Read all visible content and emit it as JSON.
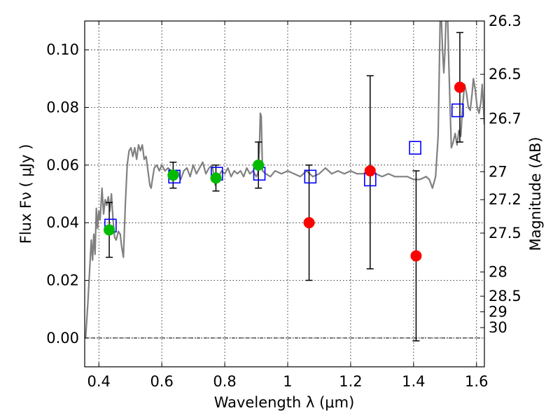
{
  "chart_data": {
    "type": "scatter",
    "xlabel": "Wavelength  λ (μm)",
    "ylabel": "Flux  Fν  ( μJy )",
    "y2label": "Magnitude (AB)",
    "xlim": [
      0.355,
      1.625
    ],
    "ylim": [
      -0.01,
      0.11
    ],
    "grid": true,
    "x_ticks": [
      0.4,
      0.6,
      0.8,
      1.0,
      1.2,
      1.4,
      1.6
    ],
    "x_tick_labels": [
      "0.4",
      "0.6",
      "0.8",
      "1",
      "1.2",
      "1.4",
      "1.6"
    ],
    "y_ticks": [
      0.0,
      0.02,
      0.04,
      0.06,
      0.08,
      0.1
    ],
    "y_tick_labels": [
      "0.00",
      "0.02",
      "0.04",
      "0.06",
      "0.08",
      "0.10"
    ],
    "y2_ticks": [
      {
        "label": "26.3",
        "flux": 0.11
      },
      {
        "label": "26.5",
        "flux": 0.0915
      },
      {
        "label": "26.7",
        "flux": 0.0761
      },
      {
        "label": "27",
        "flux": 0.0577
      },
      {
        "label": "27.2",
        "flux": 0.048
      },
      {
        "label": "27.5",
        "flux": 0.0364
      },
      {
        "label": "28",
        "flux": 0.0229
      },
      {
        "label": "28.5",
        "flux": 0.0145
      },
      {
        "label": "29",
        "flux": 0.0091
      },
      {
        "label": "30",
        "flux": 0.0036
      }
    ],
    "zero_line": 0.0,
    "model_spectrum": {
      "color": "#808080",
      "points": [
        [
          0.358,
          0.0
        ],
        [
          0.365,
          0.012
        ],
        [
          0.372,
          0.026
        ],
        [
          0.376,
          0.034
        ],
        [
          0.38,
          0.027
        ],
        [
          0.384,
          0.036
        ],
        [
          0.388,
          0.029
        ],
        [
          0.392,
          0.045
        ],
        [
          0.396,
          0.038
        ],
        [
          0.4,
          0.044
        ],
        [
          0.404,
          0.041
        ],
        [
          0.41,
          0.052
        ],
        [
          0.415,
          0.043
        ],
        [
          0.42,
          0.048
        ],
        [
          0.425,
          0.046
        ],
        [
          0.43,
          0.049
        ],
        [
          0.435,
          0.044
        ],
        [
          0.44,
          0.05
        ],
        [
          0.445,
          0.041
        ],
        [
          0.45,
          0.035
        ],
        [
          0.455,
          0.034
        ],
        [
          0.462,
          0.037
        ],
        [
          0.468,
          0.036
        ],
        [
          0.472,
          0.032
        ],
        [
          0.478,
          0.028
        ],
        [
          0.484,
          0.046
        ],
        [
          0.49,
          0.06
        ],
        [
          0.496,
          0.065
        ],
        [
          0.502,
          0.066
        ],
        [
          0.508,
          0.063
        ],
        [
          0.514,
          0.066
        ],
        [
          0.52,
          0.062
        ],
        [
          0.526,
          0.067
        ],
        [
          0.532,
          0.065
        ],
        [
          0.538,
          0.067
        ],
        [
          0.544,
          0.062
        ],
        [
          0.55,
          0.063
        ],
        [
          0.556,
          0.058
        ],
        [
          0.562,
          0.053
        ],
        [
          0.566,
          0.052
        ],
        [
          0.57,
          0.055
        ],
        [
          0.576,
          0.059
        ],
        [
          0.584,
          0.06
        ],
        [
          0.592,
          0.058
        ],
        [
          0.6,
          0.06
        ],
        [
          0.61,
          0.058
        ],
        [
          0.62,
          0.059
        ],
        [
          0.63,
          0.058
        ],
        [
          0.64,
          0.056
        ],
        [
          0.65,
          0.058
        ],
        [
          0.66,
          0.055
        ],
        [
          0.67,
          0.058
        ],
        [
          0.68,
          0.059
        ],
        [
          0.69,
          0.056
        ],
        [
          0.7,
          0.06
        ],
        [
          0.71,
          0.057
        ],
        [
          0.72,
          0.059
        ],
        [
          0.73,
          0.061
        ],
        [
          0.74,
          0.057
        ],
        [
          0.75,
          0.059
        ],
        [
          0.76,
          0.06
        ],
        [
          0.77,
          0.053
        ],
        [
          0.78,
          0.056
        ],
        [
          0.79,
          0.058
        ],
        [
          0.8,
          0.057
        ],
        [
          0.81,
          0.059
        ],
        [
          0.82,
          0.056
        ],
        [
          0.83,
          0.058
        ],
        [
          0.84,
          0.057
        ],
        [
          0.85,
          0.058
        ],
        [
          0.86,
          0.056
        ],
        [
          0.87,
          0.059
        ],
        [
          0.88,
          0.057
        ],
        [
          0.89,
          0.058
        ],
        [
          0.9,
          0.056
        ],
        [
          0.905,
          0.057
        ],
        [
          0.91,
          0.065
        ],
        [
          0.913,
          0.078
        ],
        [
          0.916,
          0.077
        ],
        [
          0.92,
          0.058
        ],
        [
          0.93,
          0.057
        ],
        [
          0.945,
          0.056
        ],
        [
          0.96,
          0.058
        ],
        [
          0.98,
          0.057
        ],
        [
          1.0,
          0.058
        ],
        [
          1.02,
          0.057
        ],
        [
          1.04,
          0.056
        ],
        [
          1.06,
          0.058
        ],
        [
          1.08,
          0.056
        ],
        [
          1.1,
          0.057
        ],
        [
          1.12,
          0.059
        ],
        [
          1.14,
          0.057
        ],
        [
          1.16,
          0.058
        ],
        [
          1.18,
          0.057
        ],
        [
          1.2,
          0.058
        ],
        [
          1.22,
          0.057
        ],
        [
          1.24,
          0.057
        ],
        [
          1.26,
          0.058
        ],
        [
          1.28,
          0.057
        ],
        [
          1.3,
          0.056
        ],
        [
          1.32,
          0.057
        ],
        [
          1.34,
          0.056
        ],
        [
          1.36,
          0.056
        ],
        [
          1.38,
          0.056
        ],
        [
          1.4,
          0.055
        ],
        [
          1.42,
          0.055
        ],
        [
          1.44,
          0.056
        ],
        [
          1.45,
          0.055
        ],
        [
          1.46,
          0.052
        ],
        [
          1.47,
          0.056
        ],
        [
          1.478,
          0.07
        ],
        [
          1.482,
          0.095
        ],
        [
          1.485,
          0.115
        ],
        [
          1.488,
          0.112
        ],
        [
          1.492,
          0.1
        ],
        [
          1.496,
          0.092
        ],
        [
          1.5,
          0.1
        ],
        [
          1.504,
          0.115
        ],
        [
          1.508,
          0.112
        ],
        [
          1.512,
          0.095
        ],
        [
          1.516,
          0.08
        ],
        [
          1.52,
          0.066
        ],
        [
          1.526,
          0.068
        ],
        [
          1.532,
          0.071
        ],
        [
          1.538,
          0.067
        ],
        [
          1.544,
          0.072
        ],
        [
          1.55,
          0.07
        ],
        [
          1.556,
          0.081
        ],
        [
          1.562,
          0.088
        ],
        [
          1.568,
          0.085
        ],
        [
          1.574,
          0.08
        ],
        [
          1.58,
          0.079
        ],
        [
          1.586,
          0.085
        ],
        [
          1.59,
          0.09
        ],
        [
          1.596,
          0.086
        ],
        [
          1.602,
          0.08
        ],
        [
          1.608,
          0.078
        ],
        [
          1.614,
          0.082
        ],
        [
          1.618,
          0.088
        ],
        [
          1.622,
          0.08
        ],
        [
          1.625,
          0.074
        ]
      ]
    },
    "model_photometry": {
      "color": "#0000ff",
      "points": [
        {
          "x": 0.437,
          "y": 0.039
        },
        {
          "x": 0.64,
          "y": 0.056
        },
        {
          "x": 0.775,
          "y": 0.057
        },
        {
          "x": 0.91,
          "y": 0.057
        },
        {
          "x": 1.072,
          "y": 0.056
        },
        {
          "x": 1.262,
          "y": 0.055
        },
        {
          "x": 1.405,
          "y": 0.066
        },
        {
          "x": 1.54,
          "y": 0.079
        }
      ]
    },
    "detections": {
      "color": "#00bb00",
      "points": [
        {
          "x": 0.433,
          "y": 0.0375,
          "yerr_low": 0.028,
          "yerr_high": 0.047
        },
        {
          "x": 0.636,
          "y": 0.0565,
          "yerr_low": 0.052,
          "yerr_high": 0.061
        },
        {
          "x": 0.772,
          "y": 0.0555,
          "yerr_low": 0.051,
          "yerr_high": 0.06
        },
        {
          "x": 0.907,
          "y": 0.06,
          "yerr_low": 0.052,
          "yerr_high": 0.068
        }
      ]
    },
    "non_detections": {
      "color": "#ff0000",
      "points": [
        {
          "x": 1.068,
          "y": 0.04,
          "yerr_low": 0.02,
          "yerr_high": 0.06
        },
        {
          "x": 1.262,
          "y": 0.058,
          "yerr_low": 0.024,
          "yerr_high": 0.091
        },
        {
          "x": 1.408,
          "y": 0.0285,
          "yerr_low": -0.001,
          "yerr_high": 0.058
        },
        {
          "x": 1.547,
          "y": 0.087,
          "yerr_low": 0.068,
          "yerr_high": 0.106
        }
      ]
    }
  }
}
